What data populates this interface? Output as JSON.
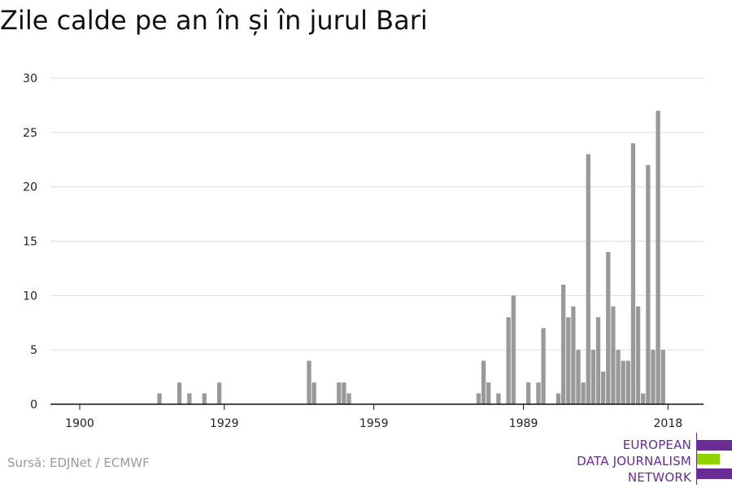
{
  "title": "Zile calde pe an în și în jurul Bari",
  "source": "Sursă: EDJNet / ECMWF",
  "logo": {
    "lines": [
      "EUROPEAN",
      "DATA JOURNALISM",
      "NETWORK"
    ],
    "colors": {
      "purple": "#6a2b94",
      "green": "#8fd400"
    }
  },
  "chart_data": {
    "type": "bar",
    "title": "Zile calde pe an în și în jurul Bari",
    "xlabel": "",
    "ylabel": "",
    "xlim": [
      1900,
      2018
    ],
    "ylim": [
      0,
      30
    ],
    "x_tick_labels": [
      "1900",
      "1929",
      "1959",
      "1989",
      "2018"
    ],
    "y_tick_labels": [
      "0",
      "5",
      "10",
      "15",
      "20",
      "25",
      "30"
    ],
    "bar_color": "#999999",
    "grid": true,
    "x": [
      1900,
      1901,
      1902,
      1903,
      1904,
      1905,
      1906,
      1907,
      1908,
      1909,
      1910,
      1911,
      1912,
      1913,
      1914,
      1915,
      1916,
      1917,
      1918,
      1919,
      1920,
      1921,
      1922,
      1923,
      1924,
      1925,
      1926,
      1927,
      1928,
      1929,
      1930,
      1931,
      1932,
      1933,
      1934,
      1935,
      1936,
      1937,
      1938,
      1939,
      1940,
      1941,
      1942,
      1943,
      1944,
      1945,
      1946,
      1947,
      1948,
      1949,
      1950,
      1951,
      1952,
      1953,
      1954,
      1955,
      1956,
      1957,
      1958,
      1959,
      1960,
      1961,
      1962,
      1963,
      1964,
      1965,
      1966,
      1967,
      1968,
      1969,
      1970,
      1971,
      1972,
      1973,
      1974,
      1975,
      1976,
      1977,
      1978,
      1979,
      1980,
      1981,
      1982,
      1983,
      1984,
      1985,
      1986,
      1987,
      1988,
      1989,
      1990,
      1991,
      1992,
      1993,
      1994,
      1995,
      1996,
      1997,
      1998,
      1999,
      2000,
      2001,
      2002,
      2003,
      2004,
      2005,
      2006,
      2007,
      2008,
      2009,
      2010,
      2011,
      2012,
      2013,
      2014,
      2015,
      2016,
      2017,
      2018
    ],
    "values": [
      0,
      0,
      0,
      0,
      0,
      0,
      0,
      0,
      0,
      0,
      0,
      0,
      0,
      0,
      0,
      0,
      1,
      0,
      0,
      0,
      2,
      0,
      1,
      0,
      0,
      1,
      0,
      0,
      2,
      0,
      0,
      0,
      0,
      0,
      0,
      0,
      0,
      0,
      0,
      0,
      0,
      0,
      0,
      0,
      0,
      0,
      4,
      2,
      0,
      0,
      0,
      0,
      2,
      2,
      1,
      0,
      0,
      0,
      0,
      0,
      0,
      0,
      0,
      0,
      0,
      0,
      0,
      0,
      0,
      0,
      0,
      0,
      0,
      0,
      0,
      0,
      0,
      0,
      0,
      0,
      1,
      4,
      2,
      0,
      1,
      0,
      8,
      10,
      0,
      0,
      2,
      0,
      2,
      7,
      0,
      0,
      1,
      11,
      8,
      9,
      5,
      2,
      23,
      5,
      8,
      3,
      14,
      9,
      5,
      4,
      4,
      24,
      9,
      1,
      22,
      5,
      27,
      5,
      0
    ]
  }
}
